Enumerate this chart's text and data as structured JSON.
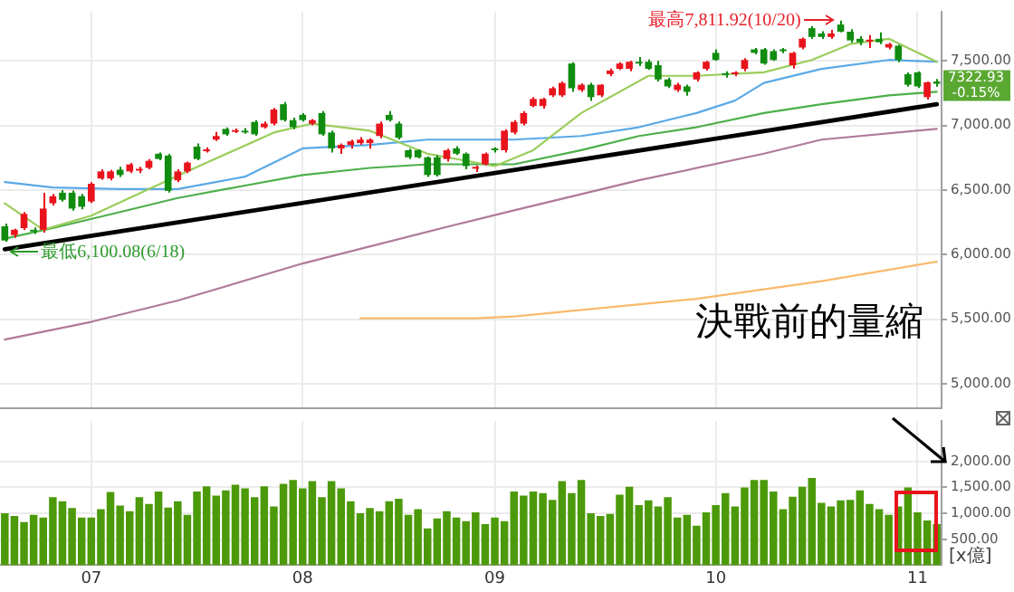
{
  "chart_data": [
    {
      "type": "candlestick",
      "categories": [
        null,
        null,
        null,
        null,
        null,
        null,
        null,
        null,
        null,
        "07",
        null,
        null,
        null,
        null,
        null,
        null,
        null,
        null,
        null,
        null,
        null,
        null,
        null,
        null,
        null,
        null,
        null,
        null,
        null,
        null,
        null,
        "08",
        null,
        null,
        null,
        null,
        null,
        null,
        null,
        null,
        null,
        null,
        null,
        null,
        null,
        null,
        null,
        null,
        null,
        null,
        null,
        "09",
        null,
        null,
        null,
        null,
        null,
        null,
        null,
        null,
        null,
        null,
        null,
        null,
        null,
        null,
        null,
        null,
        null,
        null,
        null,
        null,
        null,
        null,
        "10",
        null,
        null,
        null,
        null,
        null,
        null,
        null,
        null,
        null,
        null,
        null,
        null,
        null,
        null,
        null,
        null,
        null,
        null,
        null,
        null,
        "11",
        null,
        null
      ],
      "ohlc": [
        [
          6219,
          6240,
          6100.08,
          6109
        ],
        [
          6151,
          6200,
          6130,
          6192
        ],
        [
          6205,
          6330,
          6190,
          6315
        ],
        [
          6190,
          6210,
          6160,
          6178
        ],
        [
          6192,
          6479,
          6170,
          6356
        ],
        [
          6397,
          6470,
          6380,
          6452
        ],
        [
          6479,
          6500,
          6410,
          6424
        ],
        [
          6479,
          6495,
          6340,
          6356
        ],
        [
          6452,
          6470,
          6350,
          6370
        ],
        [
          6411,
          6560,
          6400,
          6548
        ],
        [
          6589,
          6660,
          6580,
          6644
        ],
        [
          6589,
          6655,
          6575,
          6644
        ],
        [
          6657,
          6680,
          6600,
          6616
        ],
        [
          6644,
          6710,
          6630,
          6698
        ],
        [
          6650,
          6680,
          6630,
          6660
        ],
        [
          6671,
          6740,
          6660,
          6726
        ],
        [
          6781,
          6790,
          6730,
          6740
        ],
        [
          6767,
          6780,
          6480,
          6493
        ],
        [
          6575,
          6660,
          6560,
          6644
        ],
        [
          6644,
          6720,
          6630,
          6712
        ],
        [
          6836,
          6860,
          6730,
          6740
        ],
        [
          6800,
          6830,
          6790,
          6808
        ],
        [
          6890,
          6950,
          6880,
          6918
        ],
        [
          6973,
          6985,
          6920,
          6931
        ],
        [
          6950,
          6975,
          6940,
          6959
        ],
        [
          6959,
          6980,
          6935,
          6945
        ],
        [
          7027,
          7040,
          6920,
          6931
        ],
        [
          6986,
          7030,
          6975,
          7014
        ],
        [
          7014,
          7135,
          7000,
          7123
        ],
        [
          7164,
          7180,
          7030,
          7041
        ],
        [
          7041,
          7060,
          6970,
          6986
        ],
        [
          7082,
          7095,
          7030,
          7041
        ],
        [
          7014,
          7050,
          7000,
          7041
        ],
        [
          7096,
          7110,
          6920,
          6931
        ],
        [
          6945,
          6960,
          6790,
          6822
        ],
        [
          6822,
          6860,
          6780,
          6849
        ],
        [
          6849,
          6890,
          6820,
          6877
        ],
        [
          6863,
          6910,
          6850,
          6890
        ],
        [
          6863,
          6900,
          6820,
          6890
        ],
        [
          6918,
          7030,
          6900,
          7014
        ],
        [
          7082,
          7110,
          7030,
          7041
        ],
        [
          7014,
          7030,
          6890,
          6904
        ],
        [
          6808,
          6820,
          6740,
          6753
        ],
        [
          6808,
          6815,
          6745,
          6753
        ],
        [
          6753,
          6760,
          6600,
          6616
        ],
        [
          6753,
          6770,
          6605,
          6616
        ],
        [
          6740,
          6820,
          6720,
          6808
        ],
        [
          6822,
          6840,
          6770,
          6781
        ],
        [
          6781,
          6790,
          6660,
          6685
        ],
        [
          6665,
          6690,
          6640,
          6675
        ],
        [
          6698,
          6790,
          6690,
          6781
        ],
        [
          6815,
          6830,
          6790,
          6808
        ],
        [
          6808,
          6970,
          6790,
          6959
        ],
        [
          6945,
          7040,
          6930,
          7027
        ],
        [
          7014,
          7110,
          7000,
          7096
        ],
        [
          7150,
          7220,
          7140,
          7205
        ],
        [
          7150,
          7215,
          7130,
          7205
        ],
        [
          7233,
          7300,
          7220,
          7288
        ],
        [
          7233,
          7340,
          7220,
          7329
        ],
        [
          7479,
          7490,
          7260,
          7288
        ],
        [
          7274,
          7325,
          7260,
          7315
        ],
        [
          7315,
          7330,
          7190,
          7219
        ],
        [
          7233,
          7320,
          7220,
          7315
        ],
        [
          7397,
          7440,
          7380,
          7425
        ],
        [
          7438,
          7490,
          7430,
          7479
        ],
        [
          7438,
          7500,
          7420,
          7493
        ],
        [
          7493,
          7530,
          7460,
          7479
        ],
        [
          7493,
          7510,
          7430,
          7438
        ],
        [
          7466,
          7500,
          7340,
          7356
        ],
        [
          7356,
          7370,
          7290,
          7302
        ],
        [
          7274,
          7330,
          7260,
          7315
        ],
        [
          7302,
          7315,
          7230,
          7260
        ],
        [
          7356,
          7420,
          7340,
          7411
        ],
        [
          7438,
          7500,
          7425,
          7493
        ],
        [
          7562,
          7590,
          7500,
          7507
        ],
        [
          7400,
          7420,
          7370,
          7390
        ],
        [
          7397,
          7420,
          7380,
          7411
        ],
        [
          7438,
          7520,
          7420,
          7507
        ],
        [
          7589,
          7600,
          7550,
          7562
        ],
        [
          7589,
          7600,
          7470,
          7479
        ],
        [
          7575,
          7590,
          7500,
          7507
        ],
        [
          7589,
          7600,
          7560,
          7575
        ],
        [
          7466,
          7570,
          7440,
          7562
        ],
        [
          7603,
          7680,
          7590,
          7671
        ],
        [
          7753,
          7770,
          7670,
          7685
        ],
        [
          7712,
          7730,
          7670,
          7685
        ],
        [
          7685,
          7740,
          7670,
          7712
        ],
        [
          7781,
          7811.92,
          7720,
          7726
        ],
        [
          7726,
          7745,
          7640,
          7658
        ],
        [
          7671,
          7690,
          7620,
          7644
        ],
        [
          7650,
          7700,
          7600,
          7660
        ],
        [
          7671,
          7720,
          7630,
          7644
        ],
        [
          7603,
          7640,
          7590,
          7630
        ],
        [
          7617,
          7625,
          7490,
          7507
        ],
        [
          7397,
          7410,
          7300,
          7315
        ],
        [
          7411,
          7420,
          7290,
          7302
        ],
        [
          7219,
          7340,
          7200,
          7334
        ],
        [
          7340,
          7360,
          7300,
          7322.93
        ]
      ],
      "colors": [
        "#108c10",
        "#e8141c",
        "#e8141c",
        "#108c10",
        "#e8141c",
        "#e8141c",
        "#108c10",
        "#108c10",
        "#108c10",
        "#e8141c",
        "#e8141c",
        "#e8141c",
        "#108c10",
        "#e8141c",
        "#e8141c",
        "#e8141c",
        "#108c10",
        "#108c10",
        "#e8141c",
        "#e8141c",
        "#108c10",
        "#e8141c",
        "#e8141c",
        "#108c10",
        "#e8141c",
        "#108c10",
        "#108c10",
        "#e8141c",
        "#e8141c",
        "#108c10",
        "#108c10",
        "#108c10",
        "#e8141c",
        "#108c10",
        "#108c10",
        "#e8141c",
        "#e8141c",
        "#e8141c",
        "#e8141c",
        "#e8141c",
        "#108c10",
        "#108c10",
        "#108c10",
        "#108c10",
        "#108c10",
        "#108c10",
        "#e8141c",
        "#108c10",
        "#108c10",
        "#e8141c",
        "#e8141c",
        "#108c10",
        "#e8141c",
        "#e8141c",
        "#e8141c",
        "#e8141c",
        "#e8141c",
        "#e8141c",
        "#e8141c",
        "#108c10",
        "#e8141c",
        "#108c10",
        "#e8141c",
        "#e8141c",
        "#e8141c",
        "#e8141c",
        "#108c10",
        "#108c10",
        "#108c10",
        "#108c10",
        "#e8141c",
        "#108c10",
        "#e8141c",
        "#e8141c",
        "#108c10",
        "#108c10",
        "#e8141c",
        "#e8141c",
        "#108c10",
        "#108c10",
        "#108c10",
        "#108c10",
        "#e8141c",
        "#e8141c",
        "#108c10",
        "#108c10",
        "#e8141c",
        "#108c10",
        "#108c10",
        "#108c10",
        "#e8141c",
        "#108c10",
        "#e8141c",
        "#108c10",
        "#108c10",
        "#108c10",
        "#e8141c",
        "#108c10"
      ],
      "series": [
        {
          "type": "line",
          "color": "#9acd5a",
          "values": [
            6397,
            null,
            null,
            null,
            6192,
            null,
            null,
            null,
            null,
            6301,
            null,
            null,
            null,
            null,
            null,
            null,
            null,
            null,
            null,
            6644,
            null,
            null,
            null,
            null,
            null,
            null,
            null,
            null,
            6945,
            null,
            null,
            null,
            7014,
            null,
            null,
            null,
            null,
            null,
            6959,
            null,
            null,
            null,
            null,
            null,
            6781,
            null,
            null,
            null,
            null,
            null,
            null,
            6685,
            null,
            null,
            null,
            6808,
            null,
            null,
            null,
            null,
            7096,
            null,
            null,
            null,
            null,
            null,
            null,
            7384,
            null,
            null,
            null,
            null,
            7384,
            null,
            null,
            null,
            null,
            null,
            null,
            7411,
            null,
            null,
            null,
            null,
            7507,
            null,
            null,
            null,
            7630,
            null,
            null,
            null,
            7671,
            null,
            null,
            null,
            null,
            7493
          ]
        },
        {
          "type": "line",
          "color": "#5aa9e6",
          "values": [
            6562,
            null,
            null,
            null,
            null,
            6520,
            null,
            null,
            null,
            null,
            null,
            null,
            6507,
            null,
            null,
            null,
            null,
            null,
            6507,
            null,
            null,
            null,
            null,
            null,
            null,
            6603,
            null,
            null,
            null,
            null,
            null,
            6822,
            null,
            null,
            null,
            null,
            null,
            null,
            6849,
            null,
            null,
            null,
            null,
            null,
            6890,
            null,
            null,
            null,
            null,
            null,
            null,
            null,
            null,
            6890,
            null,
            null,
            null,
            null,
            null,
            null,
            6918,
            null,
            null,
            null,
            null,
            null,
            6986,
            null,
            null,
            null,
            null,
            null,
            7096,
            null,
            null,
            null,
            7192,
            null,
            null,
            7329,
            null,
            null,
            null,
            null,
            null,
            7438,
            null,
            null,
            null,
            null,
            null,
            null,
            7507,
            null,
            null,
            null,
            null,
            7493
          ]
        },
        {
          "type": "line",
          "color": "#4daf4a",
          "values": [
            6123,
            null,
            null,
            null,
            null,
            6205,
            null,
            null,
            null,
            null,
            null,
            null,
            6329,
            null,
            null,
            null,
            null,
            null,
            6438,
            null,
            null,
            null,
            null,
            null,
            null,
            6534,
            null,
            null,
            null,
            null,
            null,
            6616,
            null,
            null,
            null,
            null,
            null,
            null,
            6671,
            null,
            null,
            null,
            null,
            null,
            6699,
            null,
            null,
            null,
            null,
            null,
            null,
            null,
            null,
            6699,
            null,
            null,
            null,
            null,
            null,
            null,
            6808,
            null,
            null,
            null,
            null,
            null,
            6918,
            null,
            null,
            null,
            null,
            null,
            6986,
            null,
            null,
            null,
            null,
            null,
            null,
            7096,
            null,
            null,
            null,
            null,
            null,
            7164,
            null,
            null,
            null,
            null,
            null,
            null,
            7233,
            null,
            null,
            null,
            null,
            7260
          ]
        },
        {
          "type": "line",
          "color": "#b07a9a",
          "values": [
            5342,
            null,
            null,
            null,
            null,
            null,
            null,
            null,
            null,
            5479,
            null,
            null,
            null,
            null,
            null,
            null,
            null,
            null,
            5644,
            null,
            null,
            null,
            null,
            null,
            null,
            null,
            null,
            null,
            null,
            null,
            null,
            5931,
            null,
            null,
            null,
            null,
            null,
            null,
            null,
            null,
            null,
            null,
            null,
            null,
            null,
            null,
            null,
            6233,
            null,
            null,
            null,
            null,
            null,
            6342,
            null,
            null,
            null,
            null,
            null,
            null,
            null,
            null,
            null,
            null,
            null,
            null,
            6575,
            null,
            null,
            null,
            null,
            null,
            null,
            null,
            null,
            null,
            null,
            null,
            null,
            6781,
            null,
            null,
            null,
            null,
            null,
            6890,
            null,
            null,
            null,
            null,
            null,
            null,
            null,
            null,
            null,
            null,
            null,
            6973
          ]
        },
        {
          "type": "line",
          "color": "#f9b96b",
          "values": [
            null,
            null,
            null,
            null,
            null,
            null,
            null,
            null,
            null,
            null,
            null,
            null,
            null,
            null,
            null,
            null,
            null,
            null,
            null,
            null,
            null,
            null,
            null,
            null,
            null,
            null,
            null,
            null,
            null,
            null,
            null,
            null,
            null,
            null,
            null,
            null,
            null,
            5507,
            null,
            null,
            null,
            null,
            null,
            null,
            null,
            null,
            null,
            null,
            null,
            5507,
            null,
            null,
            null,
            5520,
            null,
            null,
            null,
            null,
            null,
            null,
            null,
            null,
            null,
            null,
            null,
            null,
            null,
            null,
            null,
            null,
            null,
            null,
            5657,
            null,
            null,
            null,
            null,
            null,
            null,
            null,
            null,
            null,
            null,
            null,
            null,
            5794,
            null,
            null,
            null,
            null,
            null,
            null,
            null,
            null,
            null,
            null,
            null,
            5945
          ]
        },
        {
          "type": "line",
          "color": "#000000",
          "values": [
            6041,
            null,
            null,
            null,
            null,
            null,
            null,
            null,
            null,
            null,
            null,
            null,
            null,
            null,
            null,
            null,
            null,
            null,
            null,
            null,
            null,
            null,
            null,
            null,
            null,
            null,
            null,
            null,
            null,
            null,
            null,
            null,
            null,
            null,
            null,
            null,
            null,
            null,
            null,
            null,
            null,
            null,
            null,
            null,
            null,
            null,
            null,
            null,
            null,
            null,
            null,
            null,
            null,
            null,
            null,
            null,
            null,
            null,
            null,
            null,
            null,
            null,
            null,
            null,
            null,
            null,
            null,
            null,
            null,
            null,
            null,
            null,
            null,
            null,
            null,
            null,
            null,
            null,
            null,
            null,
            null,
            null,
            null,
            null,
            null,
            null,
            null,
            null,
            null,
            null,
            null,
            null,
            null,
            null,
            null,
            null,
            null,
            7164
          ]
        }
      ],
      "ylim": [
        4810,
        7880
      ],
      "yticks": [
        {
          "value": 5000,
          "label": "5,000.00"
        },
        {
          "value": 5500,
          "label": "5,500.00"
        },
        {
          "value": 6000,
          "label": "6,000.00"
        },
        {
          "value": 6500,
          "label": "6,500.00"
        },
        {
          "value": 7000,
          "label": "7,000.00"
        },
        {
          "value": 7500,
          "label": "7,500.00"
        }
      ],
      "grid": true,
      "tick_labels": "y",
      "annotations": [
        "最高7,811.92(10/20)",
        "最低6,100.08(6/18)",
        "決戰前的量縮",
        "7322.93",
        "-0.15%"
      ]
    },
    {
      "type": "bar",
      "categories": [
        null,
        null,
        null,
        null,
        null,
        null,
        null,
        null,
        null,
        "07",
        null,
        null,
        null,
        null,
        null,
        null,
        null,
        null,
        null,
        null,
        null,
        null,
        null,
        null,
        null,
        null,
        null,
        null,
        null,
        null,
        null,
        "08",
        null,
        null,
        null,
        null,
        null,
        null,
        null,
        null,
        null,
        null,
        null,
        null,
        null,
        null,
        null,
        null,
        null,
        null,
        null,
        "09",
        null,
        null,
        null,
        null,
        null,
        null,
        null,
        null,
        null,
        null,
        null,
        null,
        null,
        null,
        null,
        null,
        null,
        null,
        null,
        null,
        null,
        null,
        "10",
        null,
        null,
        null,
        null,
        null,
        null,
        null,
        null,
        null,
        null,
        null,
        null,
        null,
        null,
        null,
        null,
        null,
        null,
        null,
        null,
        "11",
        null,
        null
      ],
      "values": [
        1000,
        950,
        830,
        970,
        920,
        1310,
        1230,
        1100,
        920,
        920,
        1080,
        1410,
        1150,
        1040,
        1310,
        1180,
        1420,
        1110,
        1230,
        970,
        1420,
        1520,
        1340,
        1440,
        1550,
        1480,
        1310,
        1520,
        1130,
        1570,
        1640,
        1480,
        1620,
        1310,
        1620,
        1480,
        1230,
        1000,
        1100,
        1040,
        1230,
        1280,
        970,
        1080,
        710,
        900,
        1040,
        920,
        850,
        1020,
        790,
        920,
        850,
        1420,
        1340,
        1420,
        1390,
        1260,
        1620,
        1390,
        1640,
        1000,
        950,
        990,
        1360,
        1510,
        1160,
        1250,
        1130,
        1310,
        920,
        970,
        760,
        1020,
        1160,
        1390,
        1130,
        1500,
        1640,
        1640,
        1420,
        1080,
        1320,
        1510,
        1680,
        1200,
        1130,
        1250,
        1260,
        1440,
        1180,
        1080,
        970,
        1130,
        1500,
        1020,
        860,
        790
      ],
      "color": "#4c9a0a",
      "ylim": [
        0,
        2780
      ],
      "yticks": [
        {
          "value": 500,
          "label": "500.00"
        },
        {
          "value": 1000,
          "label": "1,000.00"
        },
        {
          "value": 1500,
          "label": "1,500.00"
        },
        {
          "value": 2000,
          "label": "2,000.00"
        }
      ],
      "grid": true,
      "ylabel": "[x億]"
    }
  ]
}
